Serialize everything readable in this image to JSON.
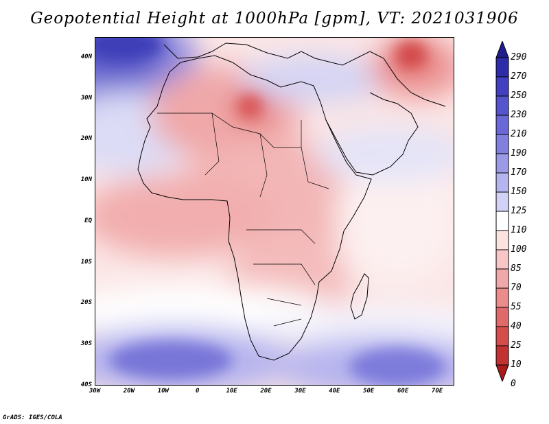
{
  "title": "Geopotential Height at 1000hPa [gpm], VT: 2021031906",
  "credit": "GrADS: IGES/COLA",
  "map": {
    "lat_labels": [
      "40N",
      "30N",
      "20N",
      "10N",
      "EQ",
      "10S",
      "20S",
      "30S",
      "40S"
    ],
    "lat_values": [
      40,
      30,
      20,
      10,
      0,
      -10,
      -20,
      -30,
      -40
    ],
    "lon_labels": [
      "30W",
      "20W",
      "10W",
      "0",
      "10E",
      "20E",
      "30E",
      "40E",
      "50E",
      "60E",
      "70E"
    ],
    "lon_values": [
      -30,
      -20,
      -10,
      0,
      10,
      20,
      30,
      40,
      50,
      60,
      70
    ],
    "lat_range": [
      -40,
      45
    ],
    "lon_range": [
      -30,
      75
    ]
  },
  "colorbar": {
    "levels": [
      "290",
      "270",
      "250",
      "230",
      "210",
      "190",
      "170",
      "150",
      "125",
      "110",
      "100",
      "85",
      "70",
      "55",
      "40",
      "25",
      "10",
      "0"
    ],
    "colors": [
      "#201e8c",
      "#2e2ca8",
      "#4240c0",
      "#5654cc",
      "#6a68d6",
      "#8280de",
      "#9c9ae6",
      "#b6b4ee",
      "#d2d2f6",
      "#ffffff",
      "#fde2e2",
      "#f8c6c6",
      "#f1a8a8",
      "#ea8c8c",
      "#e06a6a",
      "#d44c4c",
      "#c23232",
      "#a81c1c"
    ]
  },
  "icons": {
    "colorbar_top": "triangle-up-icon",
    "colorbar_bottom": "triangle-down-icon"
  }
}
